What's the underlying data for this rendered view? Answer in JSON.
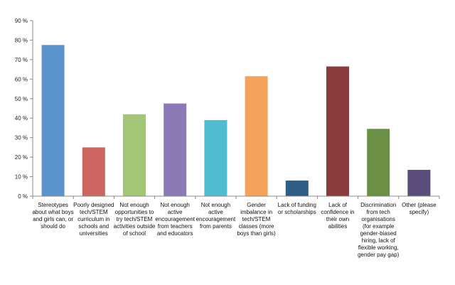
{
  "chart_data": {
    "type": "bar",
    "title": "",
    "xlabel": "",
    "ylabel": "",
    "ylim": [
      0,
      90
    ],
    "ytick_step": 10,
    "ytick_suffix": " %",
    "grid": false,
    "legend": "none",
    "categories": [
      "Stereotypes about what boys and girls can, or should do",
      "Poorly designed tech/STEM curriculum in schools and universities",
      "Not enough opportunities to try tech/STEM activities outside of school",
      "Not enough active encouragement from teachers and educators",
      "Not enough active encouragement from parents",
      "Gender imbalance in tech/STEM classes (more boys than girls)",
      "Lack of funding or scholarships",
      "Lack of confidence in their own abilities",
      "Discrimination from tech organisations (for example gender-biased hiring, lack of flexible working, gender pay gap)",
      "Other (please specify)"
    ],
    "values": [
      77.5,
      25,
      42,
      47.5,
      39,
      61.5,
      8,
      66.5,
      34.5,
      13.5
    ],
    "colors": [
      "#5b93cb",
      "#cd6461",
      "#a3c576",
      "#8b79b6",
      "#4fbcd0",
      "#f5a35c",
      "#2e5d86",
      "#8a3b3c",
      "#6b8f45",
      "#5a4d7c"
    ]
  }
}
